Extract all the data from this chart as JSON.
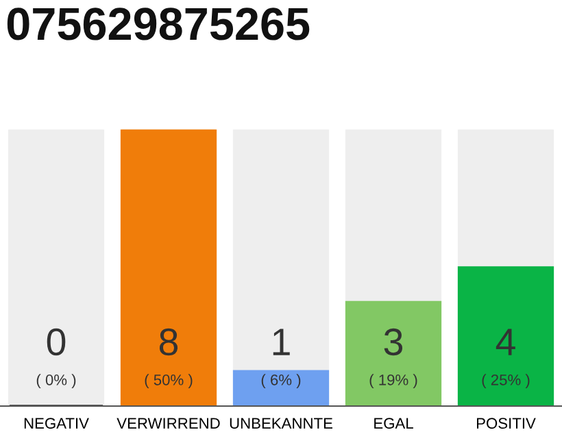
{
  "chart_data": {
    "type": "bar",
    "title": "075629875265",
    "categories": [
      "NEGATIV",
      "VERWIRREND",
      "UNBEKANNTE",
      "EGAL",
      "POSITIV"
    ],
    "stacked": true,
    "ylim": [
      0,
      8
    ],
    "tick_labels": "x",
    "series": [
      {
        "values": [
          0,
          8,
          1,
          3,
          4
        ],
        "colors": [
          "#555555",
          "#f07d0a",
          "#6ea0f0",
          "#82c864",
          "#0ab446"
        ],
        "value_labels": [
          "0\n( 0% )",
          "8\n( 50% )",
          "1\n( 6% )",
          "3\n( 19% )",
          "4\n( 25% )"
        ]
      },
      {
        "values": [
          8,
          0,
          7,
          5,
          4
        ],
        "color": "#eeeeee"
      }
    ]
  }
}
